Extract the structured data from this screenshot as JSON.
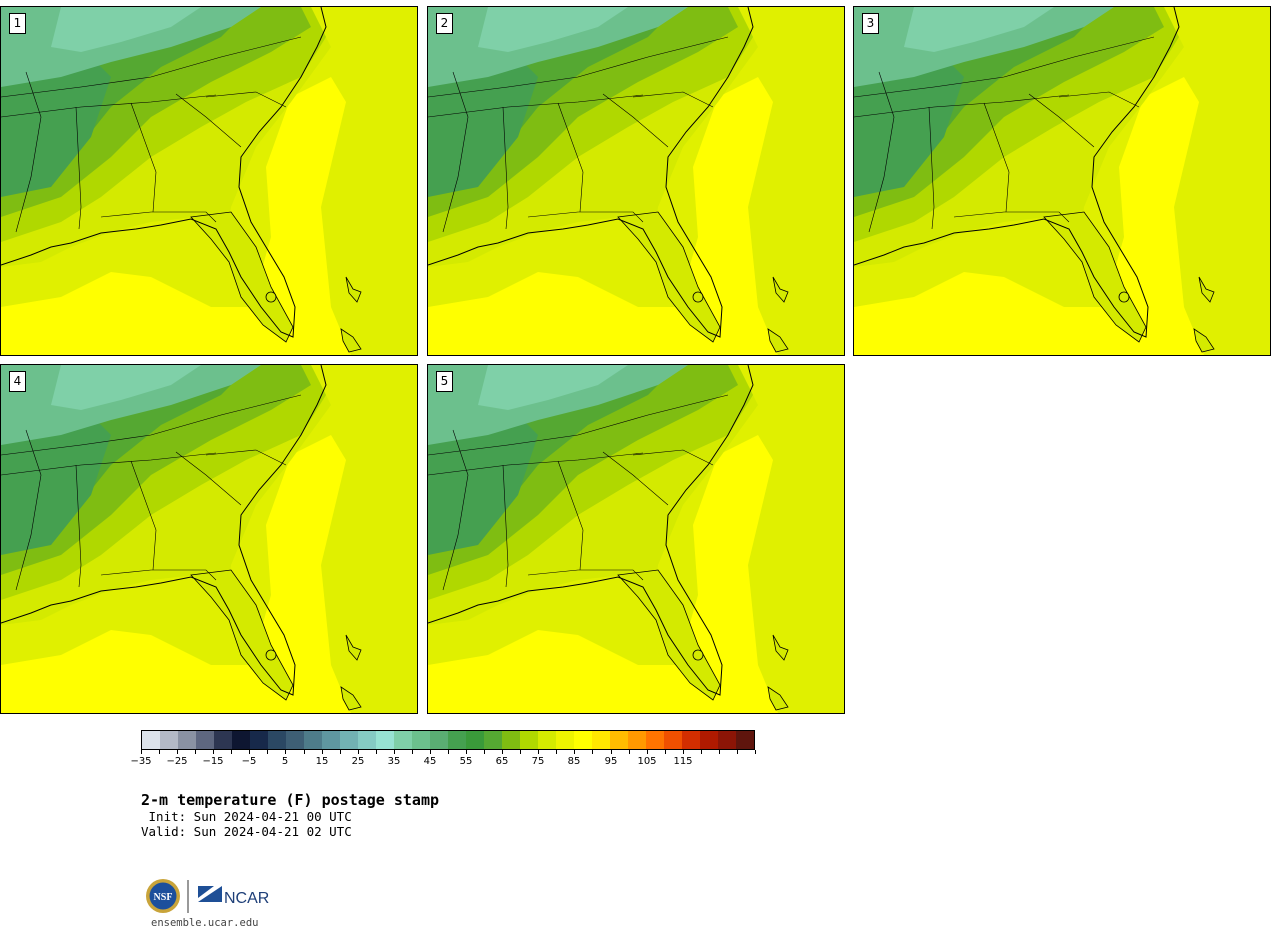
{
  "panels": [
    {
      "label": "1"
    },
    {
      "label": "2"
    },
    {
      "label": "3"
    },
    {
      "label": "4"
    },
    {
      "label": "5"
    }
  ],
  "colorbar": {
    "colors": [
      "#dde3ea",
      "#b3b9c6",
      "#8a92a3",
      "#5e6780",
      "#2d3652",
      "#0e1631",
      "#17294a",
      "#2b4863",
      "#3e5f75",
      "#4e7c8a",
      "#5f97a0",
      "#72b2b3",
      "#85cbc4",
      "#97e3d3",
      "#7fd0a8",
      "#6cc08d",
      "#5aae73",
      "#45a050",
      "#3a9a3a",
      "#55a832",
      "#7fbd12",
      "#b0d800",
      "#d4ea00",
      "#eef400",
      "#ffff00",
      "#ffe800",
      "#ffbc00",
      "#ff9900",
      "#ff7400",
      "#f05000",
      "#d22e00",
      "#b01a00",
      "#8c1506",
      "#5f150d"
    ],
    "tick_labels": [
      "−35",
      "−25",
      "−15",
      "−5",
      "5",
      "15",
      "25",
      "35",
      "45",
      "55",
      "65",
      "75",
      "85",
      "95",
      "105",
      "115"
    ],
    "range": [
      -35,
      120
    ],
    "step": 5
  },
  "title": "2-m temperature (F) postage stamp",
  "init": " Init: Sun 2024-04-21 00 UTC",
  "valid": "Valid: Sun 2024-04-21 02 UTC",
  "site": "ensemble.ucar.edu",
  "logo": {
    "left_text": "NSF",
    "right_text": "NCAR"
  }
}
